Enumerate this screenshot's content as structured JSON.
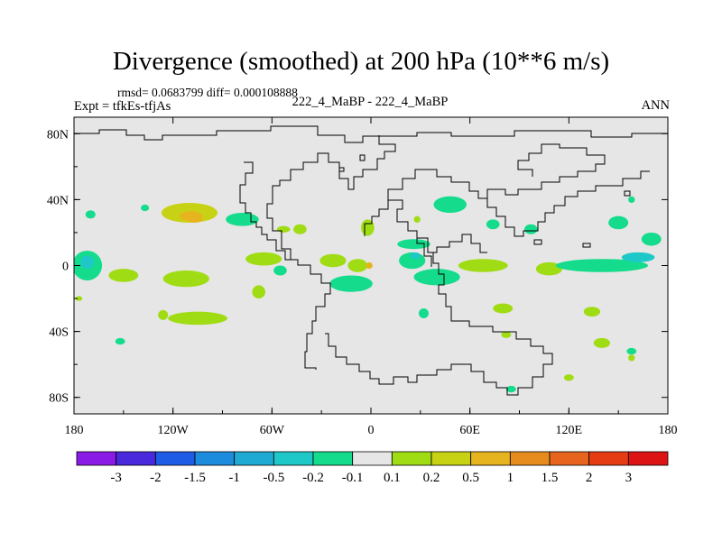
{
  "title": "Divergence (smoothed) at 200 hPa (10**6 m/s)",
  "stats_line": "rmsd= 0.0683799 diff= 0.000108888",
  "expt_line": "Expt = tfkEs-tfjAs",
  "subtitle": "222_4_MaBP - 222_4_MaBP",
  "period": "ANN",
  "colors": {
    "background_field": "#e6e6e6",
    "coastline": "#000000"
  },
  "chart_data": {
    "type": "heatmap",
    "title": "Divergence (smoothed) at 200 hPa (10**6 m/s)",
    "xlabel": "",
    "ylabel": "",
    "xlim": [
      -180,
      180
    ],
    "ylim": [
      -90,
      90
    ],
    "x_ticks": [
      {
        "value": -180,
        "label": "180"
      },
      {
        "value": -120,
        "label": "120W"
      },
      {
        "value": -60,
        "label": "60W"
      },
      {
        "value": 0,
        "label": "0"
      },
      {
        "value": 60,
        "label": "60E"
      },
      {
        "value": 120,
        "label": "120E"
      },
      {
        "value": 180,
        "label": "180"
      }
    ],
    "y_ticks": [
      {
        "value": 80,
        "label": "80N"
      },
      {
        "value": 40,
        "label": "40N"
      },
      {
        "value": 0,
        "label": "0"
      },
      {
        "value": -40,
        "label": "40S"
      },
      {
        "value": -80,
        "label": "80S"
      }
    ],
    "colorbar": {
      "levels": [
        "-3",
        "-2",
        "-1.5",
        "-1",
        "-0.5",
        "-0.2",
        "-0.1",
        "0.1",
        "0.2",
        "0.5",
        "1",
        "1.5",
        "2",
        "3"
      ],
      "colors": [
        "#8a1ae6",
        "#4a28dc",
        "#1e5ce6",
        "#1e8cdc",
        "#1eaad2",
        "#1ec8c8",
        "#14dc8c",
        "#e6e6e6",
        "#a0dc14",
        "#c8d214",
        "#e6b41e",
        "#e68c1e",
        "#e6641e",
        "#e63c14",
        "#dc1414"
      ]
    },
    "regions": [
      {
        "name": "n-pacific-east-0.5",
        "lon": -110,
        "lat": 32,
        "rlon": 17,
        "rlat": 6,
        "level": "0.2-0.5"
      },
      {
        "name": "n-pacific-east-1",
        "lon": -109,
        "lat": 30,
        "rlon": 7,
        "rlat": 3,
        "level": "0.5-1"
      },
      {
        "name": "n-pacific-west",
        "lon": -170,
        "lat": 31,
        "rlon": 3,
        "rlat": 2.5,
        "level": "-0.2--0.1"
      },
      {
        "name": "n-pacific-mid",
        "lon": -137,
        "lat": 35,
        "rlon": 2.5,
        "rlat": 2,
        "level": "-0.2--0.1"
      },
      {
        "name": "gulf-mexico",
        "lon": -78,
        "lat": 28,
        "rlon": 10,
        "rlat": 4,
        "level": "-0.2--0.1"
      },
      {
        "name": "atlantic-sub",
        "lon": -43,
        "lat": 22,
        "rlon": 4,
        "rlat": 3,
        "level": "0.1-0.2"
      },
      {
        "name": "n-africa",
        "lon": -2,
        "lat": 23,
        "rlon": 4,
        "rlat": 5,
        "level": "0.1-0.2"
      },
      {
        "name": "e-pacific-eq-a",
        "lon": -172,
        "lat": 0,
        "rlon": 9,
        "rlat": 9,
        "level": "-0.2--0.1"
      },
      {
        "name": "e-pacific-eq-b",
        "lon": -172,
        "lat": 2,
        "rlon": 4,
        "rlat": 4,
        "level": "-0.5--0.2"
      },
      {
        "name": "trop-pac-1",
        "lon": -112,
        "lat": -8,
        "rlon": 14,
        "rlat": 5,
        "level": "0.1-0.2"
      },
      {
        "name": "trop-pac-2",
        "lon": -150,
        "lat": -6,
        "rlon": 9,
        "rlat": 4,
        "level": "0.1-0.2"
      },
      {
        "name": "amazon-1",
        "lon": -65,
        "lat": 4,
        "rlon": 11,
        "rlat": 4,
        "level": "0.1-0.2"
      },
      {
        "name": "amazon-2",
        "lon": -55,
        "lat": -3,
        "rlon": 4,
        "rlat": 3,
        "level": "-0.2--0.1"
      },
      {
        "name": "e-atlantic",
        "lon": -23,
        "lat": 3,
        "rlon": 8,
        "rlat": 4,
        "level": "0.1-0.2"
      },
      {
        "name": "w-africa",
        "lon": -12,
        "lat": -11,
        "rlon": 13,
        "rlat": 5,
        "level": "-0.2--0.1"
      },
      {
        "name": "c-africa",
        "lon": -8,
        "lat": 0,
        "rlon": 6,
        "rlat": 4,
        "level": "0.1-0.2"
      },
      {
        "name": "africa-center",
        "lon": -1,
        "lat": 0,
        "rlon": 2,
        "rlat": 2,
        "level": "0.5-1"
      },
      {
        "name": "s-pacific-1",
        "lon": -105,
        "lat": -32,
        "rlon": 18,
        "rlat": 4,
        "level": "0.1-0.2"
      },
      {
        "name": "s-pacific-2",
        "lon": -68,
        "lat": -16,
        "rlon": 4,
        "rlat": 4,
        "level": "0.1-0.2"
      },
      {
        "name": "s-pacific-3",
        "lon": -126,
        "lat": -30,
        "rlon": 3,
        "rlat": 3,
        "level": "0.1-0.2"
      },
      {
        "name": "s-pacific-4",
        "lon": -152,
        "lat": -46,
        "rlon": 3,
        "rlat": 2,
        "level": "-0.2--0.1"
      },
      {
        "name": "mid-east",
        "lon": 28,
        "lat": 28,
        "rlon": 2,
        "rlat": 2,
        "level": "0.1-0.2"
      },
      {
        "name": "china-tibet",
        "lon": 48,
        "lat": 37,
        "rlon": 10,
        "rlat": 5,
        "level": "-0.2--0.1"
      },
      {
        "name": "arabian-sea",
        "lon": 26,
        "lat": 13,
        "rlon": 10,
        "rlat": 3,
        "level": "-0.2--0.1"
      },
      {
        "name": "africa-east",
        "lon": 25,
        "lat": 3,
        "rlon": 8,
        "rlat": 5,
        "level": "-0.2--0.1"
      },
      {
        "name": "africa-east-b",
        "lon": 27,
        "lat": 6,
        "rlon": 3,
        "rlat": 2,
        "level": "-0.5--0.2"
      },
      {
        "name": "indian-ocean-1",
        "lon": 40,
        "lat": -7,
        "rlon": 14,
        "rlat": 5,
        "level": "-0.2--0.1"
      },
      {
        "name": "indian-ocean-2",
        "lon": 68,
        "lat": 0,
        "rlon": 15,
        "rlat": 4,
        "level": "0.1-0.2"
      },
      {
        "name": "indian-ocean-3",
        "lon": 32,
        "lat": -29,
        "rlon": 3,
        "rlat": 3,
        "level": "-0.2--0.1"
      },
      {
        "name": "maritime-cont",
        "lon": 108,
        "lat": -2,
        "rlon": 8,
        "rlat": 4,
        "level": "0.1-0.2"
      },
      {
        "name": "w-pacific-1",
        "lon": 140,
        "lat": 0,
        "rlon": 28,
        "rlat": 4,
        "level": "-0.2--0.1"
      },
      {
        "name": "w-pacific-2",
        "lon": 162,
        "lat": 5,
        "rlon": 10,
        "rlat": 3,
        "level": "-0.5--0.2"
      },
      {
        "name": "w-pacific-3",
        "lon": 150,
        "lat": 26,
        "rlon": 6,
        "rlat": 4,
        "level": "-0.2--0.1"
      },
      {
        "name": "w-pacific-4",
        "lon": 170,
        "lat": 16,
        "rlon": 6,
        "rlat": 4,
        "level": "-0.2--0.1"
      },
      {
        "name": "w-pacific-5",
        "lon": 158,
        "lat": 40,
        "rlon": 2,
        "rlat": 2,
        "level": "-0.2--0.1"
      },
      {
        "name": "s-indian-1",
        "lon": 80,
        "lat": -26,
        "rlon": 6,
        "rlat": 3,
        "level": "0.1-0.2"
      },
      {
        "name": "s-indian-2",
        "lon": 134,
        "lat": -28,
        "rlon": 5,
        "rlat": 3,
        "level": "0.1-0.2"
      },
      {
        "name": "s-indian-3",
        "lon": 82,
        "lat": -42,
        "rlon": 3,
        "rlat": 2,
        "level": "0.1-0.2"
      },
      {
        "name": "s-indian-4",
        "lon": 140,
        "lat": -47,
        "rlon": 5,
        "rlat": 3,
        "level": "0.1-0.2"
      },
      {
        "name": "s-ocean-1",
        "lon": 85,
        "lat": -75,
        "rlon": 3,
        "rlat": 2,
        "level": "-0.2--0.1"
      },
      {
        "name": "s-ocean-2",
        "lon": 120,
        "lat": -68,
        "rlon": 3,
        "rlat": 2,
        "level": "0.1-0.2"
      },
      {
        "name": "s-ocean-3",
        "lon": 158,
        "lat": -56,
        "rlon": 2,
        "rlat": 2,
        "level": "0.1-0.2"
      },
      {
        "name": "s-pacific-5",
        "lon": 158,
        "lat": -52,
        "rlon": 3,
        "rlat": 2,
        "level": "-0.2--0.1"
      },
      {
        "name": "s-pacific-6",
        "lon": -177,
        "lat": -20,
        "rlon": 2,
        "rlat": 1.5,
        "level": "0.1-0.2"
      },
      {
        "name": "tropic-4",
        "lon": -53,
        "lat": 22,
        "rlon": 4,
        "rlat": 2,
        "level": "0.1-0.2"
      },
      {
        "name": "e-pacific-s",
        "lon": -107,
        "lat": 28,
        "rlon": 5,
        "rlat": 2,
        "level": "0.5-1"
      },
      {
        "name": "indochina",
        "lon": 97,
        "lat": 22,
        "rlon": 4,
        "rlat": 3,
        "level": "-0.2--0.1"
      },
      {
        "name": "china-east",
        "lon": 74,
        "lat": 25,
        "rlon": 4,
        "rlat": 3,
        "level": "-0.2--0.1"
      }
    ]
  }
}
